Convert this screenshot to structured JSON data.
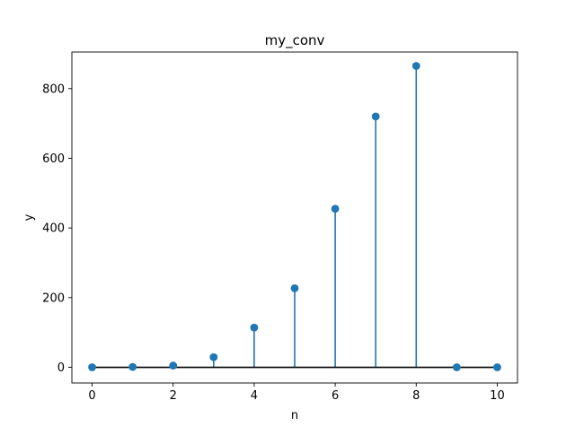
{
  "chart_data": {
    "type": "stem",
    "title": "my_conv",
    "xlabel": "n",
    "ylabel": "y",
    "xlim": [
      -0.5,
      10.5
    ],
    "ylim": [
      -45,
      905
    ],
    "x_ticks": [
      0,
      2,
      4,
      6,
      8,
      10
    ],
    "y_ticks": [
      0,
      200,
      400,
      600,
      800
    ],
    "grid": false,
    "legend": "none",
    "baseline": 0,
    "series": [
      {
        "x": [
          0,
          1,
          2,
          3,
          4,
          5,
          6,
          7,
          8,
          9,
          10
        ],
        "y": [
          0,
          1,
          5,
          29,
          114,
          227,
          455,
          720,
          865,
          0,
          0
        ],
        "color": "#1f77b4"
      }
    ],
    "baseline_color": "#000000"
  }
}
